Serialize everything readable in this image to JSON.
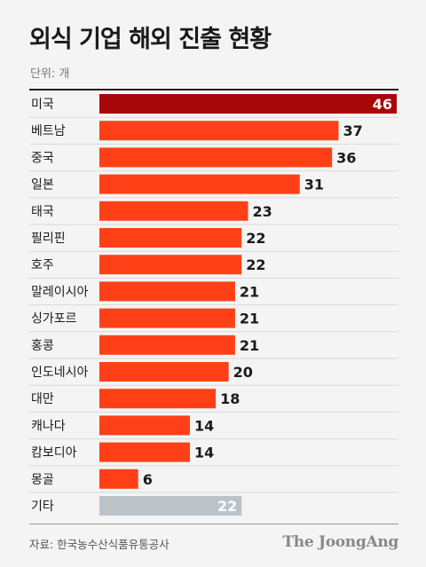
{
  "title": "외식 기업 해외 진출 현황",
  "unit": "단위: 개",
  "source": "자료: 한국농수산식품유통공사",
  "brand": "The JoongAng",
  "colors": {
    "top": "#a8070a",
    "main": "#ff4017",
    "other": "#bcc3c8",
    "divider": "#d9d9d9"
  },
  "chart_data": {
    "type": "bar",
    "orientation": "horizontal",
    "categories": [
      "미국",
      "베트남",
      "중국",
      "일본",
      "태국",
      "필리핀",
      "호주",
      "말레이시아",
      "싱가포르",
      "홍콩",
      "인도네시아",
      "대만",
      "캐나다",
      "캄보디아",
      "몽골",
      "기타"
    ],
    "values": [
      46,
      37,
      36,
      31,
      23,
      22,
      22,
      21,
      21,
      21,
      20,
      18,
      14,
      14,
      6,
      22
    ],
    "xlim": [
      0,
      46
    ],
    "grid": false,
    "legend": "none"
  }
}
